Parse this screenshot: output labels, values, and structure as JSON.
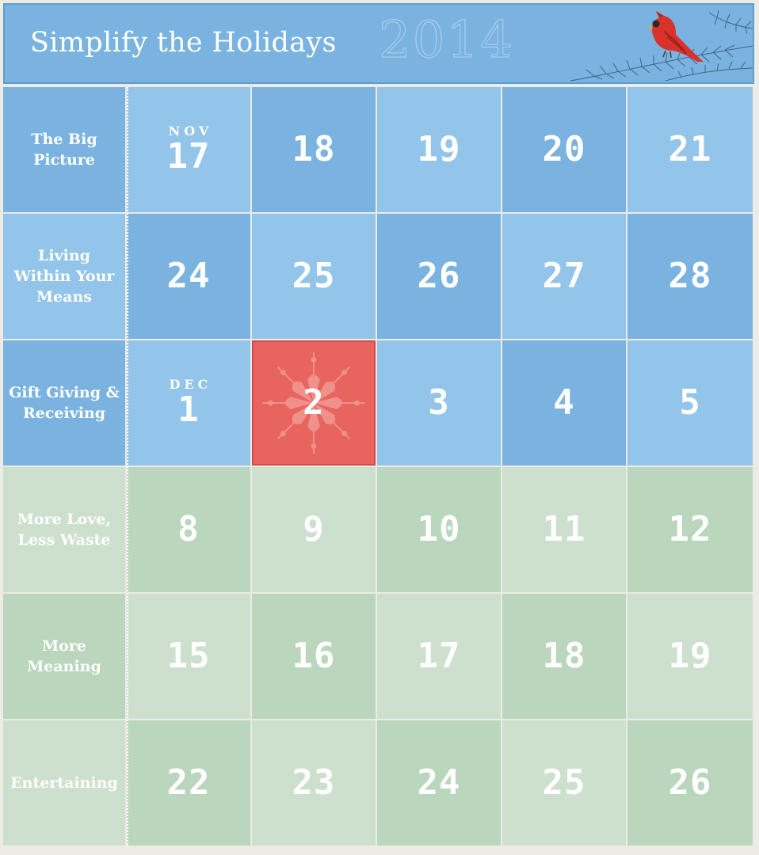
{
  "header": {
    "title": "Simplify the Holidays",
    "year": "2014"
  },
  "colors": {
    "header_bg": "#7ab3e0",
    "blue_dark": "#7ab3e0",
    "blue_light": "#93c4e9",
    "green_dark": "#bad6bc",
    "green_light": "#cde0ce",
    "highlight": "#e8655f"
  },
  "weeks": [
    {
      "label": "The Big Picture",
      "days": [
        {
          "month": "NOV",
          "day": "17"
        },
        {
          "day": "18"
        },
        {
          "day": "19"
        },
        {
          "day": "20"
        },
        {
          "day": "21"
        }
      ]
    },
    {
      "label": "Living Within Your Means",
      "days": [
        {
          "day": "24"
        },
        {
          "day": "25"
        },
        {
          "day": "26"
        },
        {
          "day": "27"
        },
        {
          "day": "28"
        }
      ]
    },
    {
      "label": "Gift Giving & Receiving",
      "days": [
        {
          "month": "DEC",
          "day": "1"
        },
        {
          "day": "2",
          "highlighted": true,
          "icon": "snowflake-icon"
        },
        {
          "day": "3"
        },
        {
          "day": "4"
        },
        {
          "day": "5"
        }
      ]
    },
    {
      "label": "More Love, Less Waste",
      "days": [
        {
          "day": "8"
        },
        {
          "day": "9"
        },
        {
          "day": "10"
        },
        {
          "day": "11"
        },
        {
          "day": "12"
        }
      ]
    },
    {
      "label": "More Meaning",
      "days": [
        {
          "day": "15"
        },
        {
          "day": "16"
        },
        {
          "day": "17"
        },
        {
          "day": "18"
        },
        {
          "day": "19"
        }
      ]
    },
    {
      "label": "Entertaining",
      "days": [
        {
          "day": "22"
        },
        {
          "day": "23"
        },
        {
          "day": "24"
        },
        {
          "day": "25"
        },
        {
          "day": "26"
        }
      ]
    }
  ]
}
